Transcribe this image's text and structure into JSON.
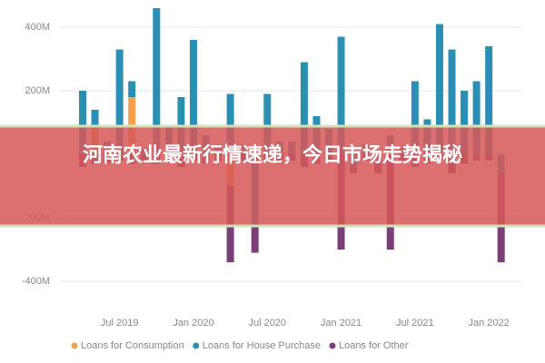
{
  "chart_data": {
    "type": "stacked_bar",
    "overlay_title": "河南农业最新行情速递，今日市场走势揭秘",
    "categories": [
      null,
      null,
      null,
      "Jul 2019",
      null,
      null,
      null,
      null,
      null,
      "Jan 2020",
      null,
      null,
      null,
      null,
      null,
      "Jul 2020",
      null,
      null,
      null,
      null,
      null,
      "Jan 2021",
      null,
      null,
      null,
      null,
      null,
      "Jul 2021",
      null,
      null,
      null,
      null,
      null,
      "Jan 2022",
      null
    ],
    "series": [
      {
        "name": "Loans for Consumption",
        "color": "#f4a04a",
        "values": [
          0,
          80,
          0,
          0,
          180,
          0,
          0,
          0,
          0,
          0,
          0,
          0,
          -100,
          0,
          0,
          0,
          0,
          0,
          0,
          0,
          0,
          0,
          0,
          0,
          0,
          0,
          0,
          0,
          0,
          0,
          0,
          0,
          0,
          0,
          0
        ]
      },
      {
        "name": "Loans for House Purchase",
        "color": "#2b8fb3",
        "values": [
          200,
          60,
          40,
          330,
          50,
          20,
          460,
          90,
          180,
          360,
          60,
          30,
          190,
          30,
          -220,
          190,
          40,
          40,
          290,
          120,
          80,
          370,
          -40,
          30,
          -30,
          60,
          20,
          230,
          110,
          410,
          330,
          200,
          230,
          340,
          -60
        ]
      },
      {
        "name": "Loans for Other",
        "color": "#7a3e78",
        "values": [
          -40,
          -30,
          -30,
          -20,
          -30,
          -20,
          -30,
          -20,
          -40,
          -20,
          -30,
          -20,
          -240,
          -20,
          -90,
          -20,
          -30,
          -20,
          -40,
          -30,
          -20,
          -300,
          -20,
          -20,
          -30,
          -300,
          -20,
          -40,
          -30,
          -20,
          -60,
          -30,
          -20,
          -20,
          -280
        ]
      }
    ],
    "ylim": [
      -490,
      460
    ],
    "yticks": [
      {
        "value": 400,
        "label": "400M"
      },
      {
        "value": 200,
        "label": "200M"
      },
      {
        "value": -200,
        "label": "-200M"
      },
      {
        "value": -400,
        "label": "-400M"
      }
    ],
    "grid": true
  }
}
